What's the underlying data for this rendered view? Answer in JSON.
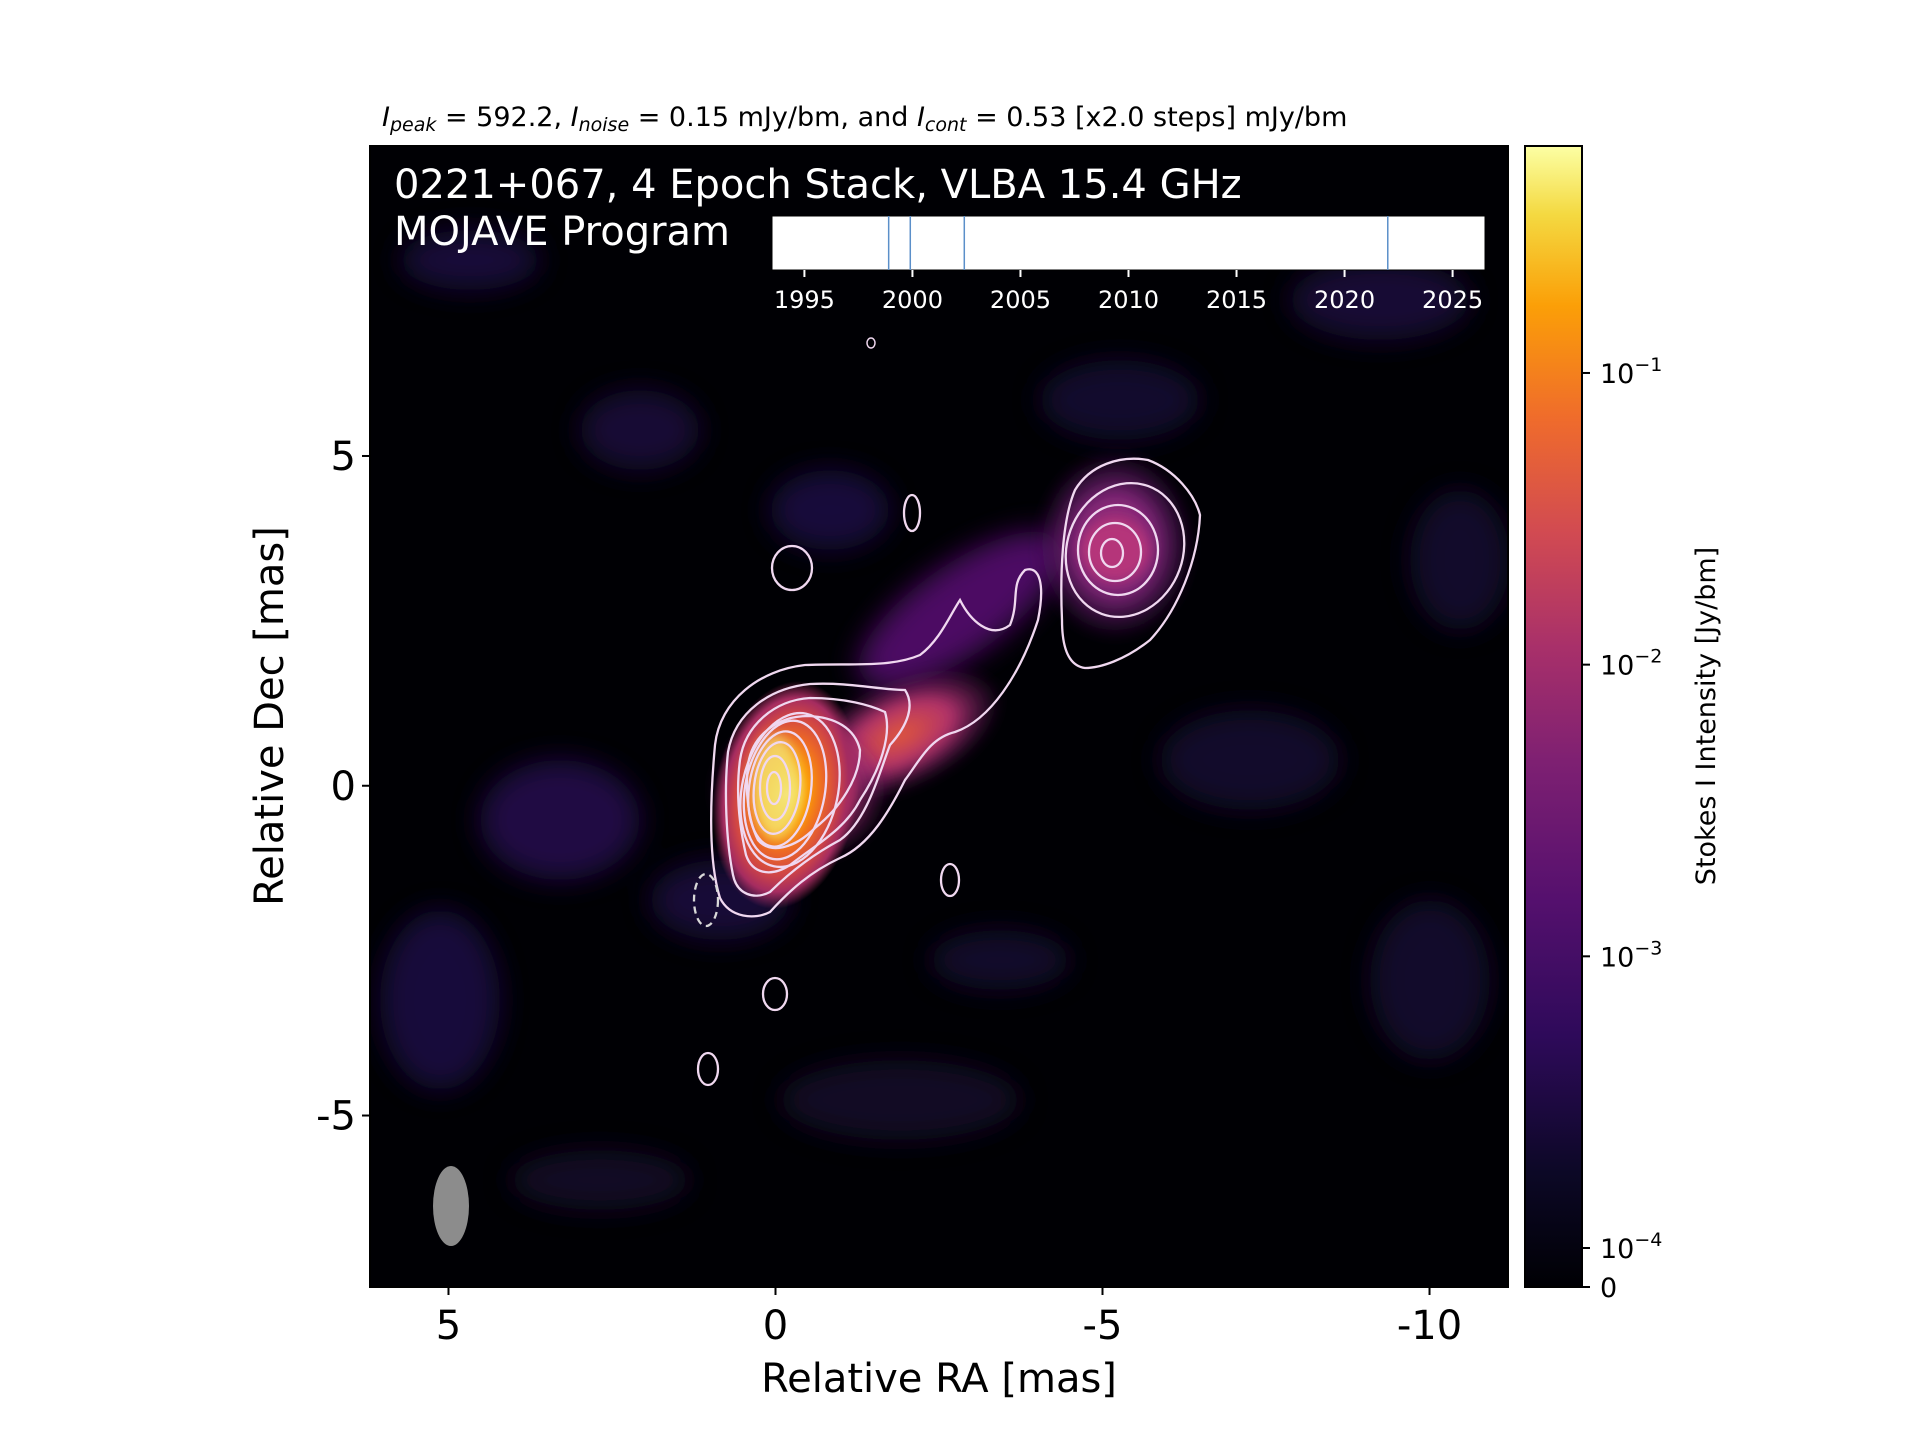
{
  "chart_data": {
    "type": "heatmap",
    "title_parts": {
      "peak_label": "I",
      "peak_sub": "peak",
      "peak_value": " = 592.2, ",
      "noise_label": "I",
      "noise_sub": "noise",
      "noise_value": " = 0.15 mJy/bm, and ",
      "cont_label": "I",
      "cont_sub": "cont",
      "cont_value": " = 0.53 [x2.0 steps] mJy/bm"
    },
    "annotation_line1": "0221+067, 4 Epoch Stack, VLBA 15.4 GHz",
    "annotation_line2": "MOJAVE Program",
    "xlabel": "Relative RA [mas]",
    "ylabel": "Relative Dec [mas]",
    "xlim": [
      6.2,
      -11.2
    ],
    "ylim": [
      -7.6,
      9.7
    ],
    "x_ticks": [
      5,
      0,
      -5,
      -10
    ],
    "x_tick_labels": [
      "5",
      "0",
      "-5",
      "-10"
    ],
    "y_ticks": [
      5,
      0,
      -5
    ],
    "y_tick_labels": [
      "5",
      "0",
      "-5"
    ],
    "colormap": "inferno",
    "background_color": "#000004",
    "contour_color": "#f0d8f0",
    "colorbar": {
      "label": "Stokes I Intensity [Jy/bm]",
      "scale": "log",
      "tick_values": [
        0.1,
        0.01,
        0.001,
        0.0001,
        0
      ],
      "tick_bases": [
        "10",
        "10",
        "10",
        "10",
        "0"
      ],
      "tick_exponents": [
        "−1",
        "−2",
        "−3",
        "−4",
        ""
      ]
    },
    "components": [
      {
        "ra": 0.0,
        "dec": 0.0,
        "peak_jy": 0.592
      },
      {
        "ra": -1.0,
        "dec": 0.3,
        "peak_jy": 0.025
      },
      {
        "ra": -2.8,
        "dec": 1.6,
        "peak_jy": 0.0025
      },
      {
        "ra": -3.8,
        "dec": 2.2,
        "peak_jy": 0.0015
      },
      {
        "ra": -5.1,
        "dec": 3.5,
        "peak_jy": 0.008
      }
    ],
    "contour_levels_mjy": [
      0.53,
      1.06,
      2.12,
      4.24,
      8.48,
      16.96,
      33.92,
      67.84,
      135.68,
      271.36
    ],
    "beam": {
      "ra": 4.95,
      "dec": -6.4,
      "note": "restoring beam ellipse"
    },
    "epoch_inset": {
      "xlim": [
        1993.5,
        2026.5
      ],
      "ticks": [
        1995,
        2000,
        2005,
        2010,
        2015,
        2020,
        2025
      ],
      "tick_labels": [
        "1995",
        "2000",
        "2005",
        "2010",
        "2015",
        "2020",
        "2025"
      ],
      "epochs": [
        1998.9,
        1999.9,
        2002.4,
        2022.0
      ],
      "epoch_color": "#5b8fc9"
    }
  }
}
